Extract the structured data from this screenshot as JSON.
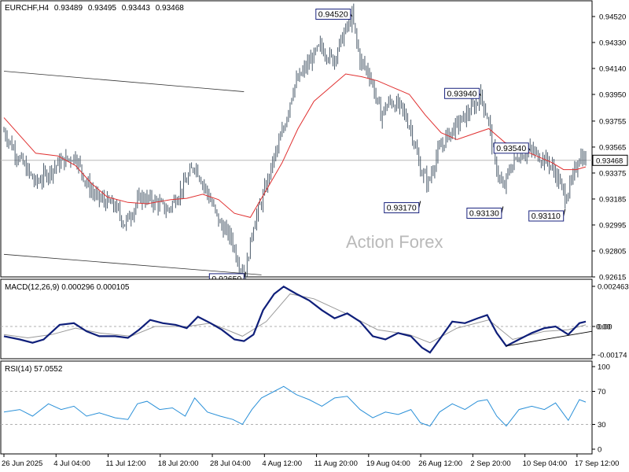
{
  "chart_data": [
    {
      "type": "candlestick",
      "title": "EURCHF,H4",
      "ohlc": [
        "0.93489",
        "0.93495",
        "0.93443",
        "0.93468"
      ],
      "ylim": [
        0.92615,
        0.9452
      ],
      "y_ticks": [
        "0.94520",
        "0.94330",
        "0.94140",
        "0.93950",
        "0.93755",
        "0.93565",
        "0.93375",
        "0.93185",
        "0.92995",
        "0.92805",
        "0.92615"
      ],
      "current_price": "0.93468",
      "x_ticks": [
        "26 Jun 2025",
        "4 Jul 04:00",
        "11 Jul 12:00",
        "18 Jul 20:00",
        "28 Jul 04:00",
        "4 Aug 12:00",
        "11 Aug 20:00",
        "19 Aug 04:00",
        "26 Aug 12:00",
        "2 Sep 20:00",
        "10 Sep 04:00",
        "17 Sep 12:00"
      ],
      "path": [
        {
          "x": 0,
          "y": 0.9368
        },
        {
          "x": 8,
          "y": 0.9351
        },
        {
          "x": 20,
          "y": 0.933
        },
        {
          "x": 35,
          "y": 0.9345
        },
        {
          "x": 45,
          "y": 0.935
        },
        {
          "x": 52,
          "y": 0.933
        },
        {
          "x": 58,
          "y": 0.932
        },
        {
          "x": 70,
          "y": 0.9313
        },
        {
          "x": 76,
          "y": 0.93
        },
        {
          "x": 86,
          "y": 0.932
        },
        {
          "x": 96,
          "y": 0.9316
        },
        {
          "x": 103,
          "y": 0.931
        },
        {
          "x": 114,
          "y": 0.933
        },
        {
          "x": 120,
          "y": 0.9344
        },
        {
          "x": 129,
          "y": 0.932
        },
        {
          "x": 136,
          "y": 0.93
        },
        {
          "x": 143,
          "y": 0.929
        },
        {
          "x": 148,
          "y": 0.927
        },
        {
          "x": 152,
          "y": 0.9265
        },
        {
          "x": 157,
          "y": 0.93
        },
        {
          "x": 163,
          "y": 0.932
        },
        {
          "x": 169,
          "y": 0.9345
        },
        {
          "x": 176,
          "y": 0.937
        },
        {
          "x": 182,
          "y": 0.94
        },
        {
          "x": 190,
          "y": 0.9415
        },
        {
          "x": 199,
          "y": 0.943
        },
        {
          "x": 207,
          "y": 0.942
        },
        {
          "x": 216,
          "y": 0.9445
        },
        {
          "x": 219,
          "y": 0.9452
        },
        {
          "x": 224,
          "y": 0.942
        },
        {
          "x": 230,
          "y": 0.941
        },
        {
          "x": 237,
          "y": 0.938
        },
        {
          "x": 243,
          "y": 0.939
        },
        {
          "x": 250,
          "y": 0.9385
        },
        {
          "x": 256,
          "y": 0.937
        },
        {
          "x": 262,
          "y": 0.934
        },
        {
          "x": 267,
          "y": 0.933
        },
        {
          "x": 272,
          "y": 0.935
        },
        {
          "x": 279,
          "y": 0.9365
        },
        {
          "x": 287,
          "y": 0.9375
        },
        {
          "x": 295,
          "y": 0.9385
        },
        {
          "x": 300,
          "y": 0.9394
        },
        {
          "x": 305,
          "y": 0.9375
        },
        {
          "x": 309,
          "y": 0.9345
        },
        {
          "x": 314,
          "y": 0.9325
        },
        {
          "x": 318,
          "y": 0.934
        },
        {
          "x": 323,
          "y": 0.935
        },
        {
          "x": 331,
          "y": 0.9354
        },
        {
          "x": 337,
          "y": 0.935
        },
        {
          "x": 343,
          "y": 0.9345
        },
        {
          "x": 348,
          "y": 0.9335
        },
        {
          "x": 353,
          "y": 0.932
        },
        {
          "x": 357,
          "y": 0.933
        },
        {
          "x": 362,
          "y": 0.935
        },
        {
          "x": 366,
          "y": 0.9347
        }
      ],
      "moving_average": [
        {
          "x": 0,
          "y": 0.9378
        },
        {
          "x": 10,
          "y": 0.9365
        },
        {
          "x": 20,
          "y": 0.9352
        },
        {
          "x": 34,
          "y": 0.935
        },
        {
          "x": 45,
          "y": 0.9343
        },
        {
          "x": 55,
          "y": 0.933
        },
        {
          "x": 65,
          "y": 0.932
        },
        {
          "x": 78,
          "y": 0.9316
        },
        {
          "x": 90,
          "y": 0.9315
        },
        {
          "x": 105,
          "y": 0.9318
        },
        {
          "x": 115,
          "y": 0.9319
        },
        {
          "x": 125,
          "y": 0.9322
        },
        {
          "x": 135,
          "y": 0.9318
        },
        {
          "x": 145,
          "y": 0.9308
        },
        {
          "x": 155,
          "y": 0.9305
        },
        {
          "x": 165,
          "y": 0.9325
        },
        {
          "x": 175,
          "y": 0.9345
        },
        {
          "x": 185,
          "y": 0.937
        },
        {
          "x": 195,
          "y": 0.939
        },
        {
          "x": 205,
          "y": 0.94
        },
        {
          "x": 215,
          "y": 0.941
        },
        {
          "x": 225,
          "y": 0.9408
        },
        {
          "x": 235,
          "y": 0.9405
        },
        {
          "x": 245,
          "y": 0.94
        },
        {
          "x": 255,
          "y": 0.9395
        },
        {
          "x": 265,
          "y": 0.938
        },
        {
          "x": 275,
          "y": 0.9367
        },
        {
          "x": 285,
          "y": 0.9362
        },
        {
          "x": 295,
          "y": 0.9366
        },
        {
          "x": 305,
          "y": 0.937
        },
        {
          "x": 315,
          "y": 0.936
        },
        {
          "x": 325,
          "y": 0.9355
        },
        {
          "x": 335,
          "y": 0.935
        },
        {
          "x": 345,
          "y": 0.9345
        },
        {
          "x": 352,
          "y": 0.934
        },
        {
          "x": 360,
          "y": 0.934
        },
        {
          "x": 366,
          "y": 0.9342
        }
      ],
      "callouts": [
        {
          "label": "0.94520",
          "x": 219,
          "y": 0.9452
        },
        {
          "label": "0.93940",
          "x": 300,
          "y": 0.9394
        },
        {
          "label": "0.93540",
          "x": 331,
          "y": 0.9354
        },
        {
          "label": "0.93170",
          "x": 262,
          "y": 0.9317
        },
        {
          "label": "0.93130",
          "x": 314,
          "y": 0.9313
        },
        {
          "label": "0.93110",
          "x": 353,
          "y": 0.9311
        },
        {
          "label": "0.92650",
          "x": 152,
          "y": 0.9265
        }
      ],
      "channel_lines": [
        {
          "x1": 0,
          "y1": 0.9412,
          "x2": 151,
          "y2": 0.9397
        },
        {
          "x1": 0,
          "y1": 0.9278,
          "x2": 162,
          "y2": 0.9263
        }
      ],
      "watermark": "Action Forex",
      "colors": {
        "candles": "#4a5a6a",
        "moving_average": "#e03030",
        "price_line": "#b8b8b8"
      }
    },
    {
      "type": "line",
      "title": "MACD(12,26,9) 0.000296 0.000105",
      "ylim": [
        -0.00174,
        0.002463
      ],
      "y_ticks": [
        "0.002463",
        "0.00",
        "-0.00174"
      ],
      "current_marker": "0.00",
      "series": [
        {
          "name": "MACD",
          "color": "#0f1f7a",
          "points": [
            {
              "x": 0,
              "y": -0.0006
            },
            {
              "x": 10,
              "y": -0.0008
            },
            {
              "x": 18,
              "y": -0.001
            },
            {
              "x": 25,
              "y": -0.0008
            },
            {
              "x": 35,
              "y": 0.0001
            },
            {
              "x": 44,
              "y": 0.0002
            },
            {
              "x": 52,
              "y": -0.0003
            },
            {
              "x": 60,
              "y": -0.0006
            },
            {
              "x": 70,
              "y": -0.0006
            },
            {
              "x": 78,
              "y": -0.0007
            },
            {
              "x": 85,
              "y": -0.0002
            },
            {
              "x": 92,
              "y": 0.0004
            },
            {
              "x": 100,
              "y": 0.0002
            },
            {
              "x": 108,
              "y": 0.0001
            },
            {
              "x": 115,
              "y": -0.0001
            },
            {
              "x": 122,
              "y": 0.0006
            },
            {
              "x": 130,
              "y": 0.0002
            },
            {
              "x": 137,
              "y": -0.0002
            },
            {
              "x": 145,
              "y": -0.0008
            },
            {
              "x": 151,
              "y": -0.0009
            },
            {
              "x": 157,
              "y": -0.0005
            },
            {
              "x": 163,
              "y": 0.001
            },
            {
              "x": 170,
              "y": 0.002
            },
            {
              "x": 176,
              "y": 0.00245
            },
            {
              "x": 184,
              "y": 0.002
            },
            {
              "x": 192,
              "y": 0.0016
            },
            {
              "x": 200,
              "y": 0.001
            },
            {
              "x": 208,
              "y": 0.0005
            },
            {
              "x": 216,
              "y": 0.0008
            },
            {
              "x": 224,
              "y": 0.0003
            },
            {
              "x": 232,
              "y": -0.0006
            },
            {
              "x": 240,
              "y": -0.0008
            },
            {
              "x": 248,
              "y": -0.0004
            },
            {
              "x": 256,
              "y": -0.0006
            },
            {
              "x": 263,
              "y": -0.0013
            },
            {
              "x": 268,
              "y": -0.0016
            },
            {
              "x": 274,
              "y": -0.0008
            },
            {
              "x": 282,
              "y": 0.0003
            },
            {
              "x": 290,
              "y": 0.0002
            },
            {
              "x": 298,
              "y": 0.0005
            },
            {
              "x": 304,
              "y": 0.0007
            },
            {
              "x": 310,
              "y": -0.0004
            },
            {
              "x": 316,
              "y": -0.0012
            },
            {
              "x": 324,
              "y": -0.0008
            },
            {
              "x": 332,
              "y": -0.0004
            },
            {
              "x": 340,
              "y": -0.0001
            },
            {
              "x": 347,
              "y": 0.0
            },
            {
              "x": 355,
              "y": -0.0005
            },
            {
              "x": 362,
              "y": 0.0002
            },
            {
              "x": 366,
              "y": 0.0003
            }
          ]
        },
        {
          "name": "Signal",
          "color": "#9a9a9a",
          "points": [
            {
              "x": 0,
              "y": -0.0005
            },
            {
              "x": 15,
              "y": -0.0007
            },
            {
              "x": 30,
              "y": -0.0005
            },
            {
              "x": 45,
              "y": -0.0001
            },
            {
              "x": 60,
              "y": -0.0004
            },
            {
              "x": 80,
              "y": -0.0006
            },
            {
              "x": 95,
              "y": 0.0
            },
            {
              "x": 115,
              "y": 0.0
            },
            {
              "x": 130,
              "y": 0.0002
            },
            {
              "x": 150,
              "y": -0.0006
            },
            {
              "x": 165,
              "y": 0.0003
            },
            {
              "x": 180,
              "y": 0.002
            },
            {
              "x": 195,
              "y": 0.0017
            },
            {
              "x": 215,
              "y": 0.0008
            },
            {
              "x": 235,
              "y": -0.0002
            },
            {
              "x": 255,
              "y": -0.0005
            },
            {
              "x": 268,
              "y": -0.001
            },
            {
              "x": 285,
              "y": -0.0001
            },
            {
              "x": 305,
              "y": 0.0004
            },
            {
              "x": 320,
              "y": -0.0008
            },
            {
              "x": 340,
              "y": -0.0003
            },
            {
              "x": 355,
              "y": -0.0002
            },
            {
              "x": 366,
              "y": 0.0001
            }
          ]
        }
      ],
      "trendline": {
        "x1": 316,
        "y1": -0.0012,
        "x2": 376,
        "y2": -0.0003
      }
    },
    {
      "type": "line",
      "title": "RSI(14) 57.0552",
      "ylim": [
        0,
        100
      ],
      "y_ticks": [
        "100",
        "70",
        "30",
        "0"
      ],
      "levels": [
        70,
        30
      ],
      "series": [
        {
          "name": "RSI",
          "color": "#2a90d8",
          "points": [
            {
              "x": 0,
              "y": 45
            },
            {
              "x": 10,
              "y": 48
            },
            {
              "x": 18,
              "y": 40
            },
            {
              "x": 28,
              "y": 55
            },
            {
              "x": 36,
              "y": 48
            },
            {
              "x": 44,
              "y": 52
            },
            {
              "x": 52,
              "y": 40
            },
            {
              "x": 60,
              "y": 44
            },
            {
              "x": 70,
              "y": 38
            },
            {
              "x": 78,
              "y": 36
            },
            {
              "x": 84,
              "y": 55
            },
            {
              "x": 90,
              "y": 58
            },
            {
              "x": 98,
              "y": 48
            },
            {
              "x": 106,
              "y": 50
            },
            {
              "x": 114,
              "y": 40
            },
            {
              "x": 120,
              "y": 62
            },
            {
              "x": 128,
              "y": 45
            },
            {
              "x": 136,
              "y": 40
            },
            {
              "x": 144,
              "y": 36
            },
            {
              "x": 150,
              "y": 30
            },
            {
              "x": 156,
              "y": 48
            },
            {
              "x": 162,
              "y": 62
            },
            {
              "x": 170,
              "y": 70
            },
            {
              "x": 176,
              "y": 76
            },
            {
              "x": 184,
              "y": 66
            },
            {
              "x": 192,
              "y": 60
            },
            {
              "x": 200,
              "y": 52
            },
            {
              "x": 208,
              "y": 62
            },
            {
              "x": 216,
              "y": 64
            },
            {
              "x": 224,
              "y": 48
            },
            {
              "x": 232,
              "y": 38
            },
            {
              "x": 240,
              "y": 45
            },
            {
              "x": 248,
              "y": 42
            },
            {
              "x": 256,
              "y": 48
            },
            {
              "x": 262,
              "y": 32
            },
            {
              "x": 268,
              "y": 28
            },
            {
              "x": 274,
              "y": 45
            },
            {
              "x": 282,
              "y": 55
            },
            {
              "x": 290,
              "y": 48
            },
            {
              "x": 298,
              "y": 58
            },
            {
              "x": 304,
              "y": 60
            },
            {
              "x": 310,
              "y": 40
            },
            {
              "x": 316,
              "y": 28
            },
            {
              "x": 324,
              "y": 48
            },
            {
              "x": 332,
              "y": 52
            },
            {
              "x": 340,
              "y": 48
            },
            {
              "x": 347,
              "y": 56
            },
            {
              "x": 355,
              "y": 35
            },
            {
              "x": 362,
              "y": 60
            },
            {
              "x": 366,
              "y": 57
            }
          ]
        }
      ]
    }
  ]
}
